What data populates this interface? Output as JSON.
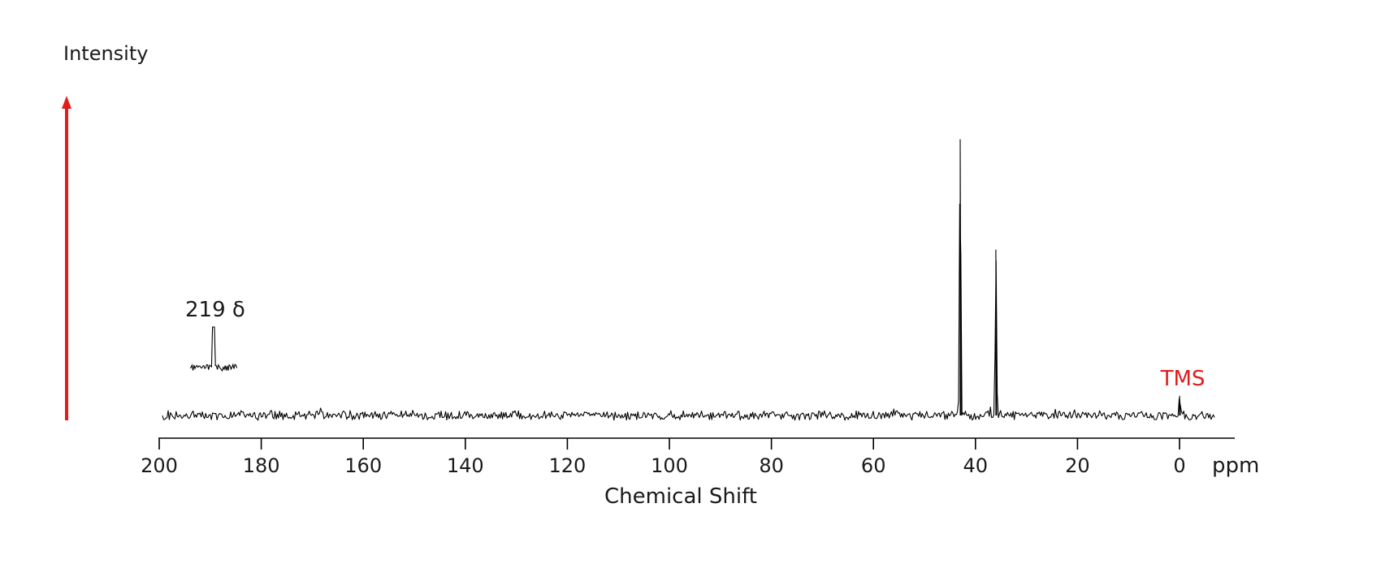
{
  "chart_data": {
    "type": "line",
    "title": "",
    "xlabel": "Chemical Shift",
    "ylabel": "Intensity",
    "x_unit": "ppm",
    "xlim": [
      200,
      0
    ],
    "xticks": [
      200,
      180,
      160,
      140,
      120,
      100,
      80,
      60,
      40,
      20,
      0
    ],
    "grid": false,
    "series": [
      {
        "peaks": [
          {
            "x": 43,
            "y": 1.0
          },
          {
            "x": 36,
            "y": 0.6
          },
          {
            "x": 0,
            "y": 0.07
          }
        ],
        "color": "#000000"
      }
    ],
    "inset": {
      "peak_label": "219 δ",
      "peak_value": 219
    },
    "annotations": [
      {
        "text": "TMS",
        "x": 0,
        "color": "#e31b1b"
      }
    ],
    "axis_arrow_color": "#e31b1b"
  }
}
